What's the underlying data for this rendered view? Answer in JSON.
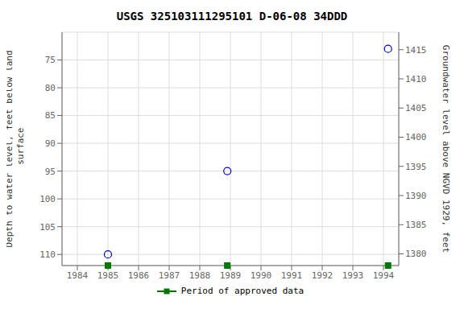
{
  "chart_data": {
    "type": "scatter",
    "title": "USGS 325103111295101 D-06-08 34DDD",
    "ylabel": "Depth to water level, feet below land\n surface",
    "y2label": "Groundwater level above NGVD 1929, feet",
    "x": [
      1985.0,
      1988.9,
      1994.15
    ],
    "series": [
      {
        "color": "#0000cc",
        "marker": "circle",
        "values": [
          110.0,
          95.0,
          73.0
        ]
      },
      {
        "name": "Period of approved data",
        "color": "#007700",
        "marker": "square",
        "values": [
          112,
          112,
          112
        ]
      }
    ],
    "xlim": [
      1983.5,
      1994.5
    ],
    "xticks": [
      1984,
      1985,
      1986,
      1987,
      1988,
      1989,
      1990,
      1991,
      1992,
      1993,
      1994
    ],
    "ylim": [
      112,
      70
    ],
    "yticks": [
      75,
      80,
      85,
      90,
      95,
      100,
      105,
      110
    ],
    "y2lim": [
      1378,
      1418
    ],
    "y2ticks": [
      1380,
      1385,
      1390,
      1395,
      1400,
      1405,
      1410,
      1415
    ],
    "grid": true,
    "legend": "bottom"
  }
}
